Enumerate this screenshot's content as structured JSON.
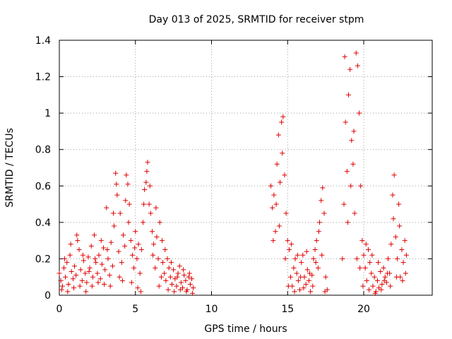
{
  "chart_data": {
    "type": "scatter",
    "title": "Day 013 of 2025, SRMTID for receiver stpm",
    "xlabel": "GPS time / hours",
    "ylabel": "SRMTID / TECUs",
    "xlim": [
      0,
      24.5
    ],
    "ylim": [
      0,
      1.4
    ],
    "xticks": [
      0,
      5,
      10,
      15,
      20
    ],
    "xtick_labels": [
      "0",
      "5",
      "10",
      "15",
      "20"
    ],
    "yticks": [
      0,
      0.2,
      0.4,
      0.6,
      0.8,
      1.0,
      1.2,
      1.4
    ],
    "ytick_labels": [
      "0",
      "0.2",
      "0.4",
      "0.6",
      "0.8",
      "1",
      "1.2",
      "1.4"
    ],
    "grid": true,
    "marker": "+",
    "color": "#e00000",
    "series": [
      {
        "name": "SRMTID",
        "points": [
          [
            0.0,
            0.12
          ],
          [
            0.1,
            0.08
          ],
          [
            0.2,
            0.05
          ],
          [
            0.3,
            0.15
          ],
          [
            0.4,
            0.1
          ],
          [
            0.5,
            0.18
          ],
          [
            0.6,
            0.06
          ],
          [
            0.7,
            0.22
          ],
          [
            0.8,
            0.13
          ],
          [
            0.9,
            0.09
          ],
          [
            1.0,
            0.16
          ],
          [
            1.1,
            0.11
          ],
          [
            1.2,
            0.3
          ],
          [
            1.3,
            0.25
          ],
          [
            1.4,
            0.14
          ],
          [
            1.5,
            0.08
          ],
          [
            1.6,
            0.19
          ],
          [
            1.7,
            0.12
          ],
          [
            1.8,
            0.07
          ],
          [
            1.9,
            0.21
          ],
          [
            2.0,
            0.15
          ],
          [
            2.1,
            0.27
          ],
          [
            2.2,
            0.1
          ],
          [
            2.3,
            0.33
          ],
          [
            2.4,
            0.18
          ],
          [
            2.5,
            0.12
          ],
          [
            2.6,
            0.22
          ],
          [
            2.7,
            0.09
          ],
          [
            2.8,
            0.17
          ],
          [
            2.9,
            0.26
          ],
          [
            3.0,
            0.14
          ],
          [
            3.1,
            0.48
          ],
          [
            3.2,
            0.2
          ],
          [
            3.3,
            0.11
          ],
          [
            3.4,
            0.29
          ],
          [
            3.5,
            0.16
          ],
          [
            3.6,
            0.38
          ],
          [
            3.7,
            0.67
          ],
          [
            3.8,
            0.55
          ],
          [
            3.9,
            0.24
          ],
          [
            4.0,
            0.45
          ],
          [
            4.1,
            0.18
          ],
          [
            4.2,
            0.33
          ],
          [
            4.3,
            0.27
          ],
          [
            4.4,
            0.66
          ],
          [
            4.5,
            0.61
          ],
          [
            4.6,
            0.5
          ],
          [
            4.7,
            0.3
          ],
          [
            4.8,
            0.22
          ],
          [
            4.9,
            0.15
          ],
          [
            5.0,
            0.35
          ],
          [
            5.1,
            0.2
          ],
          [
            5.2,
            0.28
          ],
          [
            5.3,
            0.12
          ],
          [
            5.4,
            0.25
          ],
          [
            5.5,
            0.4
          ],
          [
            5.6,
            0.58
          ],
          [
            5.7,
            0.62
          ],
          [
            5.8,
            0.73
          ],
          [
            5.9,
            0.5
          ],
          [
            6.0,
            0.45
          ],
          [
            6.1,
            0.35
          ],
          [
            6.2,
            0.28
          ],
          [
            6.3,
            0.15
          ],
          [
            6.4,
            0.32
          ],
          [
            6.5,
            0.2
          ],
          [
            6.6,
            0.4
          ],
          [
            6.7,
            0.1
          ],
          [
            6.8,
            0.18
          ],
          [
            6.9,
            0.12
          ],
          [
            7.0,
            0.08
          ],
          [
            7.1,
            0.2
          ],
          [
            7.2,
            0.15
          ],
          [
            7.3,
            0.1
          ],
          [
            7.4,
            0.06
          ],
          [
            7.5,
            0.14
          ],
          [
            7.6,
            0.09
          ],
          [
            7.7,
            0.05
          ],
          [
            7.8,
            0.12
          ],
          [
            7.9,
            0.16
          ],
          [
            8.0,
            0.07
          ],
          [
            8.1,
            0.04
          ],
          [
            8.2,
            0.11
          ],
          [
            8.3,
            0.08
          ],
          [
            8.4,
            0.03
          ],
          [
            8.5,
            0.1
          ],
          [
            8.6,
            0.06
          ],
          [
            8.7,
            0.09
          ],
          [
            8.8,
            0.04
          ],
          [
            0.15,
            0.03
          ],
          [
            0.35,
            0.2
          ],
          [
            0.55,
            0.02
          ],
          [
            0.75,
            0.28
          ],
          [
            0.95,
            0.04
          ],
          [
            1.15,
            0.33
          ],
          [
            1.35,
            0.05
          ],
          [
            1.55,
            0.22
          ],
          [
            1.75,
            0.02
          ],
          [
            1.95,
            0.13
          ],
          [
            2.15,
            0.05
          ],
          [
            2.35,
            0.2
          ],
          [
            2.55,
            0.07
          ],
          [
            2.75,
            0.3
          ],
          [
            2.95,
            0.06
          ],
          [
            3.15,
            0.25
          ],
          [
            3.35,
            0.05
          ],
          [
            3.55,
            0.45
          ],
          [
            3.75,
            0.61
          ],
          [
            3.95,
            0.1
          ],
          [
            4.15,
            0.08
          ],
          [
            4.35,
            0.52
          ],
          [
            4.55,
            0.4
          ],
          [
            4.75,
            0.07
          ],
          [
            4.95,
            0.26
          ],
          [
            5.15,
            0.04
          ],
          [
            5.35,
            0.02
          ],
          [
            5.55,
            0.5
          ],
          [
            5.75,
            0.68
          ],
          [
            5.95,
            0.6
          ],
          [
            6.15,
            0.22
          ],
          [
            6.35,
            0.48
          ],
          [
            6.55,
            0.05
          ],
          [
            6.75,
            0.3
          ],
          [
            6.95,
            0.25
          ],
          [
            7.15,
            0.03
          ],
          [
            7.35,
            0.18
          ],
          [
            7.55,
            0.02
          ],
          [
            7.75,
            0.1
          ],
          [
            7.95,
            0.03
          ],
          [
            8.15,
            0.14
          ],
          [
            8.35,
            0.02
          ],
          [
            8.55,
            0.12
          ],
          [
            8.75,
            0.01
          ],
          [
            13.9,
            0.6
          ],
          [
            14.0,
            0.48
          ],
          [
            14.1,
            0.55
          ],
          [
            14.2,
            0.35
          ],
          [
            14.3,
            0.72
          ],
          [
            14.4,
            0.88
          ],
          [
            14.5,
            0.62
          ],
          [
            14.6,
            0.95
          ],
          [
            14.7,
            0.98
          ],
          [
            14.8,
            0.66
          ],
          [
            14.9,
            0.45
          ],
          [
            15.0,
            0.3
          ],
          [
            15.1,
            0.25
          ],
          [
            15.2,
            0.1
          ],
          [
            15.3,
            0.05
          ],
          [
            15.4,
            0.15
          ],
          [
            15.5,
            0.2
          ],
          [
            15.6,
            0.12
          ],
          [
            15.7,
            0.08
          ],
          [
            15.8,
            0.03
          ],
          [
            15.9,
            0.18
          ],
          [
            16.0,
            0.22
          ],
          [
            16.1,
            0.1
          ],
          [
            16.2,
            0.06
          ],
          [
            16.3,
            0.14
          ],
          [
            16.4,
            0.08
          ],
          [
            16.5,
            0.02
          ],
          [
            16.6,
            0.11
          ],
          [
            16.7,
            0.2
          ],
          [
            16.8,
            0.25
          ],
          [
            16.9,
            0.3
          ],
          [
            17.0,
            0.15
          ],
          [
            17.1,
            0.4
          ],
          [
            17.2,
            0.52
          ],
          [
            17.3,
            0.59
          ],
          [
            17.4,
            0.45
          ],
          [
            17.5,
            0.1
          ],
          [
            17.6,
            0.03
          ],
          [
            14.05,
            0.3
          ],
          [
            14.25,
            0.5
          ],
          [
            14.45,
            0.38
          ],
          [
            14.65,
            0.78
          ],
          [
            14.85,
            0.2
          ],
          [
            15.05,
            0.05
          ],
          [
            15.25,
            0.28
          ],
          [
            15.45,
            0.02
          ],
          [
            15.65,
            0.22
          ],
          [
            15.85,
            0.1
          ],
          [
            16.05,
            0.04
          ],
          [
            16.25,
            0.24
          ],
          [
            16.45,
            0.12
          ],
          [
            16.65,
            0.05
          ],
          [
            16.85,
            0.18
          ],
          [
            17.05,
            0.35
          ],
          [
            17.25,
            0.22
          ],
          [
            17.45,
            0.02
          ],
          [
            18.6,
            0.2
          ],
          [
            18.7,
            0.5
          ],
          [
            18.8,
            0.95
          ],
          [
            18.9,
            0.68
          ],
          [
            19.0,
            1.1
          ],
          [
            19.1,
            1.24
          ],
          [
            19.2,
            0.85
          ],
          [
            19.3,
            0.72
          ],
          [
            19.4,
            0.45
          ],
          [
            19.5,
            1.33
          ],
          [
            19.6,
            1.26
          ],
          [
            19.7,
            1.0
          ],
          [
            19.8,
            0.6
          ],
          [
            19.9,
            0.3
          ],
          [
            20.0,
            0.22
          ],
          [
            20.1,
            0.15
          ],
          [
            20.2,
            0.08
          ],
          [
            20.3,
            0.25
          ],
          [
            20.4,
            0.18
          ],
          [
            20.5,
            0.12
          ],
          [
            20.6,
            0.05
          ],
          [
            20.7,
            0.1
          ],
          [
            20.8,
            0.02
          ],
          [
            20.9,
            0.08
          ],
          [
            21.0,
            0.04
          ],
          [
            21.1,
            0.13
          ],
          [
            21.2,
            0.06
          ],
          [
            21.3,
            0.15
          ],
          [
            21.4,
            0.1
          ],
          [
            21.5,
            0.07
          ],
          [
            21.6,
            0.2
          ],
          [
            21.7,
            0.12
          ],
          [
            21.8,
            0.28
          ],
          [
            21.9,
            0.55
          ],
          [
            22.0,
            0.66
          ],
          [
            22.1,
            0.32
          ],
          [
            22.2,
            0.2
          ],
          [
            22.3,
            0.5
          ],
          [
            22.4,
            0.1
          ],
          [
            22.5,
            0.25
          ],
          [
            22.6,
            0.18
          ],
          [
            22.7,
            0.3
          ],
          [
            22.8,
            0.22
          ],
          [
            18.75,
            1.31
          ],
          [
            18.95,
            0.4
          ],
          [
            19.15,
            0.6
          ],
          [
            19.35,
            0.9
          ],
          [
            19.55,
            0.2
          ],
          [
            19.75,
            0.15
          ],
          [
            19.95,
            0.05
          ],
          [
            20.15,
            0.28
          ],
          [
            20.35,
            0.03
          ],
          [
            20.55,
            0.22
          ],
          [
            20.75,
            0.01
          ],
          [
            20.95,
            0.18
          ],
          [
            21.15,
            0.03
          ],
          [
            21.35,
            0.08
          ],
          [
            21.55,
            0.12
          ],
          [
            21.75,
            0.05
          ],
          [
            21.95,
            0.42
          ],
          [
            22.15,
            0.1
          ],
          [
            22.35,
            0.38
          ],
          [
            22.55,
            0.08
          ],
          [
            22.75,
            0.12
          ]
        ]
      }
    ]
  }
}
